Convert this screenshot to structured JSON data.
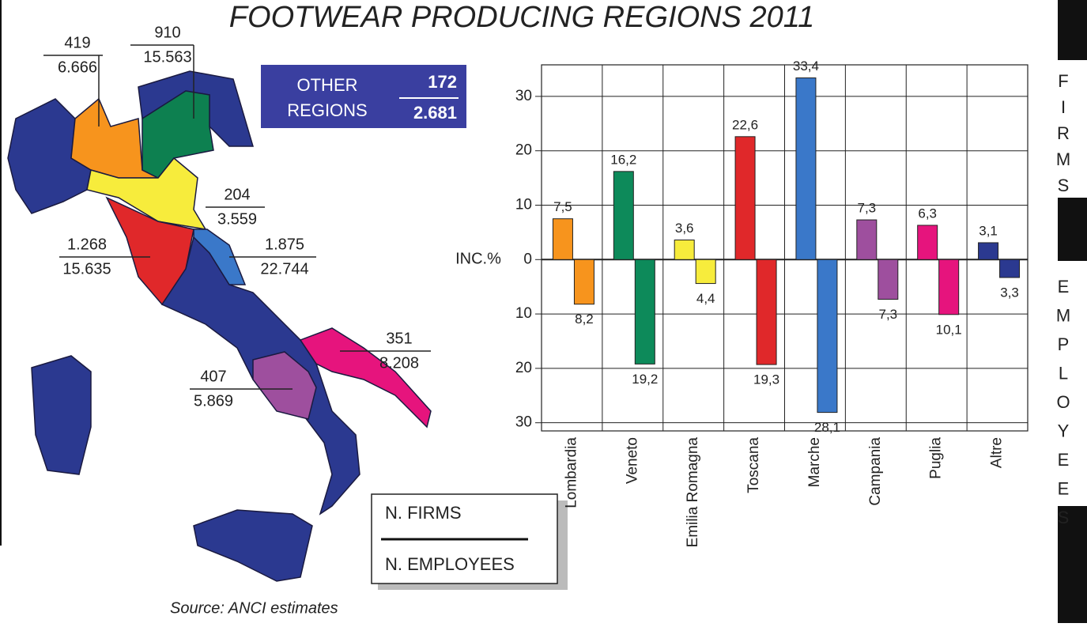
{
  "title": "FOOTWEAR PRODUCING REGIONS 2011",
  "map": {
    "annotations": [
      {
        "firms": "419",
        "employees": "6.666"
      },
      {
        "firms": "910",
        "employees": "15.563"
      },
      {
        "firms": "204",
        "employees": "3.559"
      },
      {
        "firms": "1.268",
        "employees": "15.635"
      },
      {
        "firms": "1.875",
        "employees": "22.744"
      },
      {
        "firms": "351",
        "employees": "8.208"
      },
      {
        "firms": "407",
        "employees": "5.869"
      }
    ],
    "other_regions": {
      "label": [
        "OTHER",
        "REGIONS"
      ],
      "firms": "172",
      "employees": "2.681"
    }
  },
  "legend": {
    "firms": "N. FIRMS",
    "employees": "N. EMPLOYEES"
  },
  "source": "Source: ANCI estimates",
  "chart_data": {
    "type": "bar",
    "y_label": "INC.%",
    "categories": [
      "Lombardia",
      "Veneto",
      "Emilia Romagna",
      "Toscana",
      "Marche",
      "Campania",
      "Puglia",
      "Altre"
    ],
    "series": [
      {
        "name": "FIRMS",
        "colors": [
          "#f7941d",
          "#0d8a5a",
          "#f7ec3c",
          "#e0282a",
          "#3a78c9",
          "#9e4f9e",
          "#e6147d",
          "#2b3990"
        ],
        "values": [
          7.5,
          16.2,
          3.6,
          22.6,
          33.4,
          7.3,
          6.3,
          3.1
        ],
        "value_labels": [
          "7,5",
          "16,2",
          "3,6",
          "22,6",
          "33,4",
          "7,3",
          "6,3",
          "3,1"
        ]
      },
      {
        "name": "EMPLOYEES",
        "colors": [
          "#f7941d",
          "#0d8a5a",
          "#f7ec3c",
          "#e0282a",
          "#3a78c9",
          "#9e4f9e",
          "#e6147d",
          "#2b3990"
        ],
        "values": [
          -8.2,
          -19.2,
          -4.4,
          -19.3,
          -28.1,
          -7.3,
          -10.1,
          -3.3
        ],
        "value_labels": [
          "8,2",
          "19,2",
          "4,4",
          "19,3",
          "28,1",
          "7,3",
          "10,1",
          "3,3"
        ]
      }
    ],
    "ylim": [
      -31.5,
      35.8
    ],
    "yticks": [
      {
        "value": -30,
        "label": "30"
      },
      {
        "value": -20,
        "label": "20"
      },
      {
        "value": -10,
        "label": "10"
      },
      0,
      10,
      20,
      30
    ],
    "grid": true
  }
}
